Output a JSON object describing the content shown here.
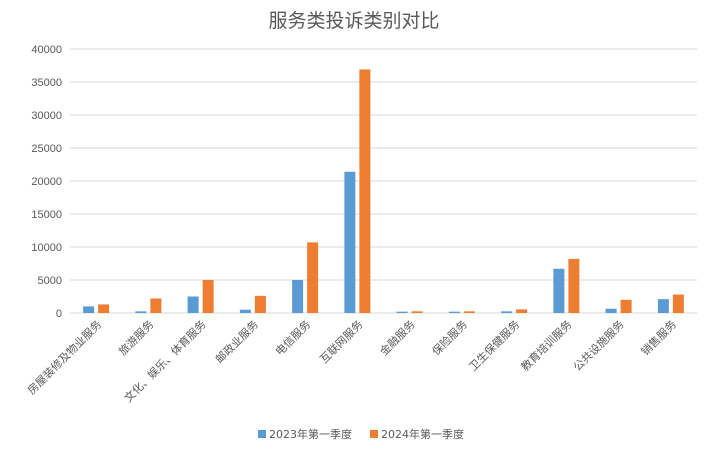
{
  "chart_data": {
    "type": "bar",
    "title": "服务类投诉类别对比",
    "xlabel": "",
    "ylabel": "",
    "ylim": [
      0,
      40000
    ],
    "yticks": [
      0,
      5000,
      10000,
      15000,
      20000,
      25000,
      30000,
      35000,
      40000
    ],
    "grid": true,
    "legend_position": "bottom",
    "categories": [
      "房屋装修及物业服务",
      "旅游服务",
      "文化、娱乐、体育服务",
      "邮政业服务",
      "电信服务",
      "互联网服务",
      "金融服务",
      "保险服务",
      "卫生保健服务",
      "教育培训服务",
      "公共设施服务",
      "销售服务"
    ],
    "series": [
      {
        "name": "2023年第一季度",
        "color": "#5b9bd5",
        "values": [
          1000,
          250,
          2500,
          500,
          5000,
          21400,
          200,
          200,
          250,
          6700,
          650,
          2100
        ]
      },
      {
        "name": "2024年第一季度",
        "color": "#ed7d31",
        "values": [
          1300,
          2200,
          5000,
          2600,
          10700,
          36900,
          250,
          250,
          550,
          8200,
          2000,
          2800
        ]
      }
    ]
  }
}
